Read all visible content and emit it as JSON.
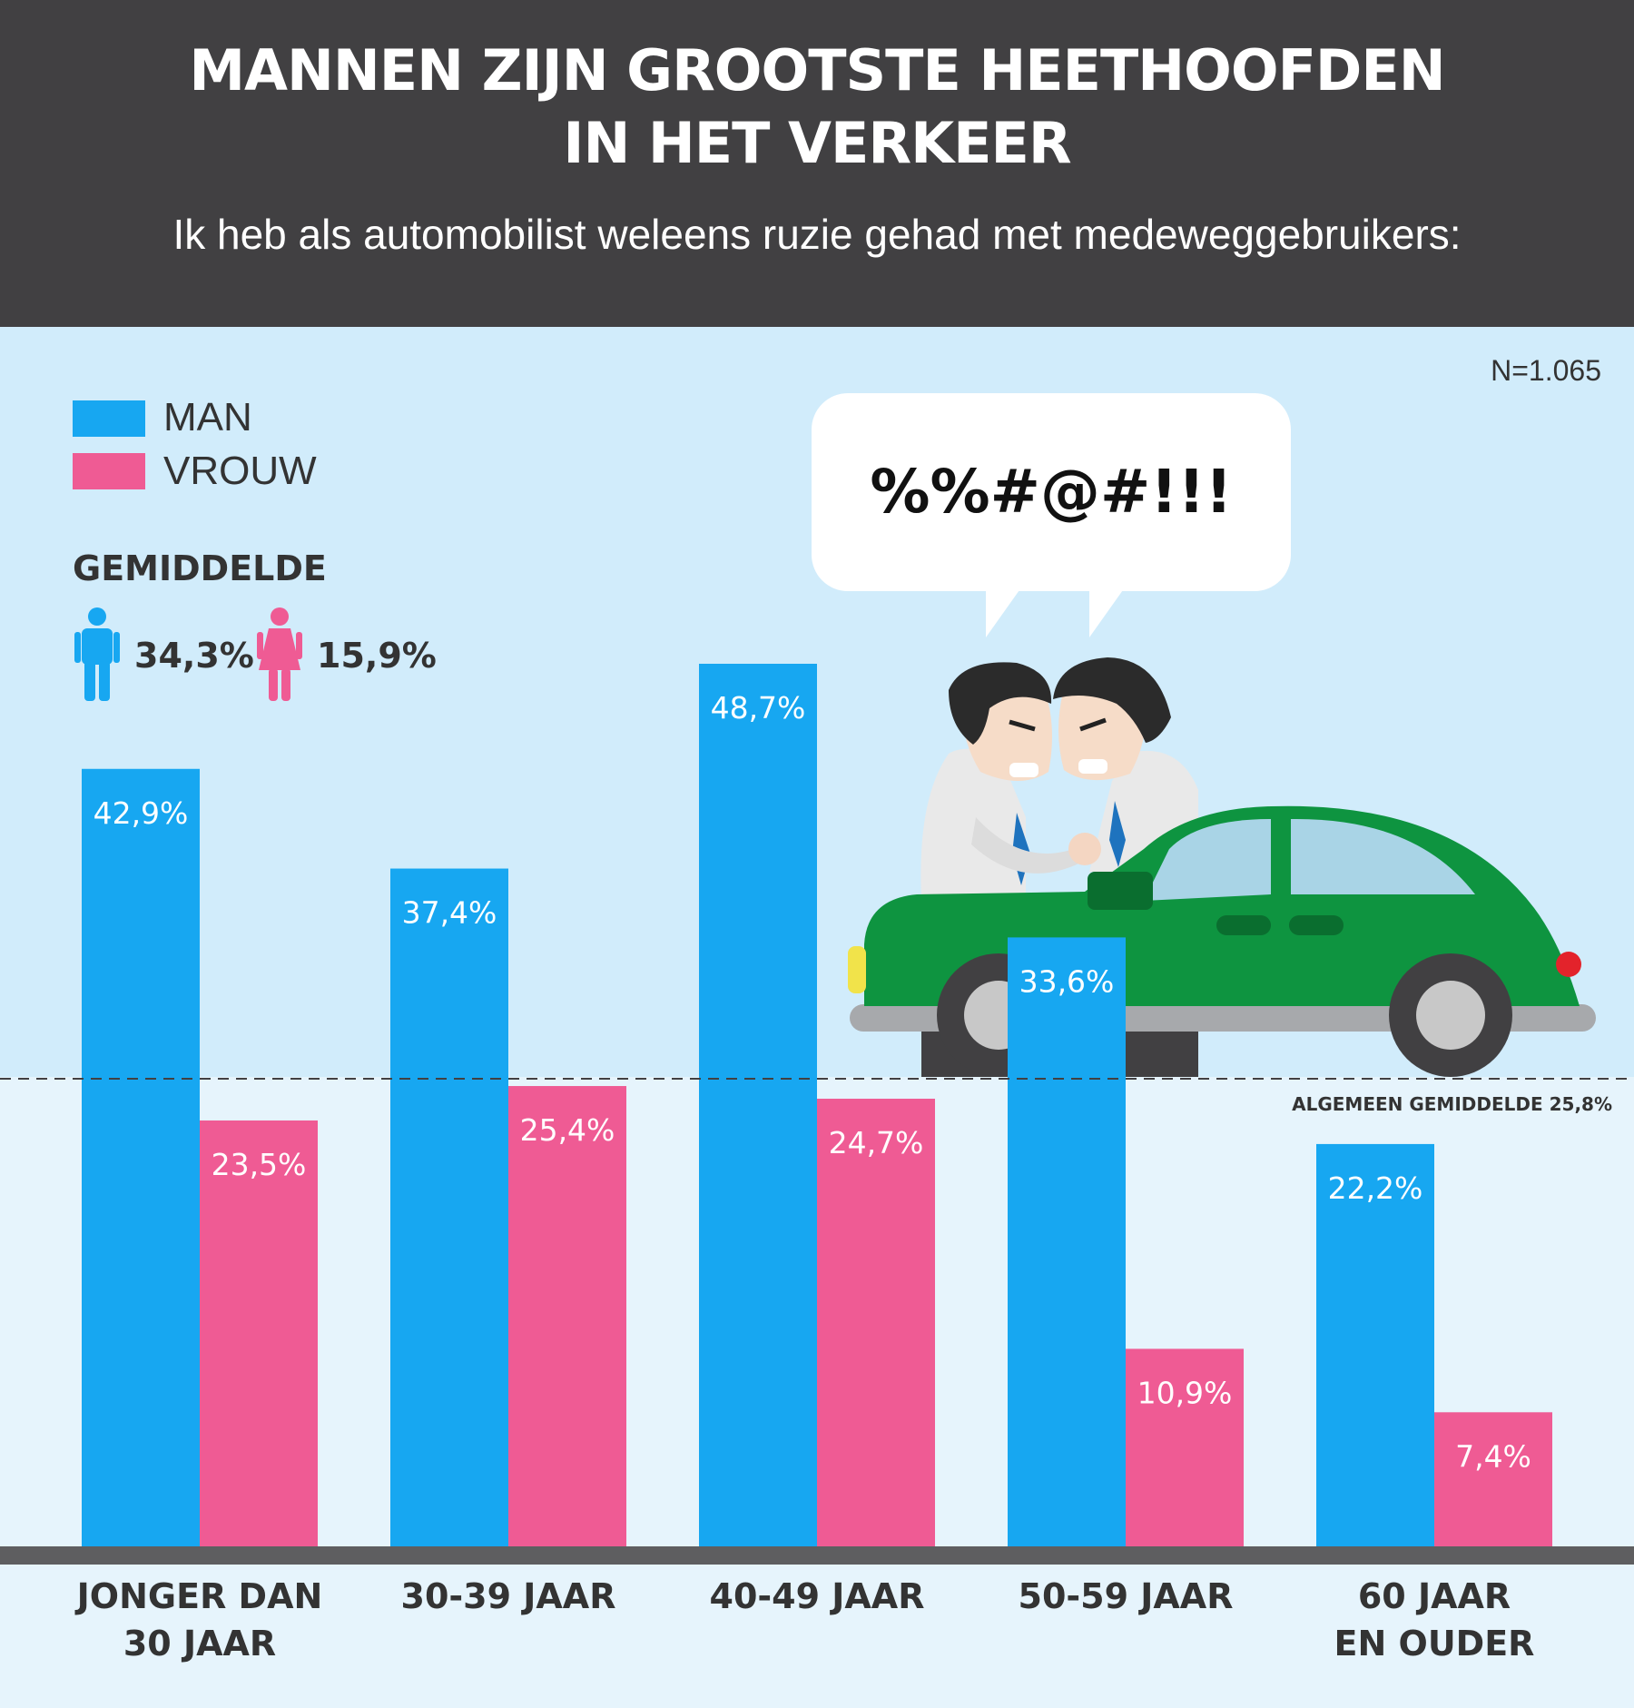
{
  "header": {
    "title_line1": "MANNEN ZIJN GROOTSTE HEETHOOFDEN",
    "title_line2": "IN HET VERKEER",
    "subtitle": "Ik heb als automobilist weleens ruzie gehad met medeweggebruikers:"
  },
  "sample_size": "N=1.065",
  "legend": {
    "man": "MAN",
    "vrouw": "VROUW"
  },
  "average": {
    "title": "GEMIDDELDE",
    "man": "34,3%",
    "vrouw": "15,9%"
  },
  "overall_average_label": "ALGEMEEN GEMIDDELDE 25,8%",
  "speech_bubble": "%%#@#!!!",
  "colors": {
    "man": "#17a7f1",
    "vrouw": "#ef5b94",
    "header": "#414042",
    "car": "#0e9440"
  },
  "chart_data": {
    "type": "bar",
    "categories": [
      "JONGER DAN 30 JAAR",
      "30-39 JAAR",
      "40-49 JAAR",
      "50-59 JAAR",
      "60 JAAR EN OUDER"
    ],
    "category_lines": [
      [
        "JONGER DAN",
        "30 JAAR"
      ],
      [
        "30-39 JAAR"
      ],
      [
        "40-49 JAAR"
      ],
      [
        "50-59 JAAR"
      ],
      [
        "60 JAAR",
        "EN OUDER"
      ]
    ],
    "series": [
      {
        "name": "MAN",
        "values": [
          42.9,
          37.4,
          48.7,
          33.6,
          22.2
        ],
        "labels": [
          "42,9%",
          "37,4%",
          "48,7%",
          "33,6%",
          "22,2%"
        ]
      },
      {
        "name": "VROUW",
        "values": [
          23.5,
          25.4,
          24.7,
          10.9,
          7.4
        ],
        "labels": [
          "23,5%",
          "25,4%",
          "24,7%",
          "10,9%",
          "7,4%"
        ]
      }
    ],
    "reference_line": 25.8,
    "ylim": [
      0,
      50
    ],
    "grid": false,
    "legend_position": "top-left"
  }
}
